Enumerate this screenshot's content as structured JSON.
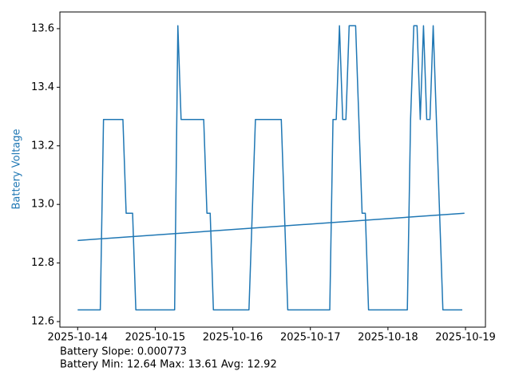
{
  "chart_data": {
    "type": "line",
    "ylabel": "Battery Voltage",
    "ylabel_color": "#1f77b4",
    "annotations": [
      "Battery Slope: 0.000773",
      "Battery Min: 12.64 Max: 13.61 Avg: 12.92"
    ],
    "xlim": [
      "2025-10-13T18:30",
      "2025-10-19T06:10"
    ],
    "xticks": [
      "2025-10-14",
      "2025-10-15",
      "2025-10-16",
      "2025-10-17",
      "2025-10-18",
      "2025-10-19"
    ],
    "ylim": [
      12.581,
      13.657
    ],
    "yticks": [
      12.6,
      12.8,
      {
        "value": 13,
        "label": "13.0"
      },
      13.2,
      13.4,
      13.6
    ],
    "series": [
      {
        "color": "#1f77b4",
        "x": [
          "2025-10-14T00:00",
          "2025-10-14T07:00",
          "2025-10-14T08:00",
          "2025-10-14T14:00",
          "2025-10-14T15:00",
          "2025-10-14T17:00",
          "2025-10-14T18:00",
          "2025-10-15T06:00",
          "2025-10-15T07:00",
          "2025-10-15T08:00",
          "2025-10-15T15:00",
          "2025-10-15T16:00",
          "2025-10-15T17:00",
          "2025-10-15T18:00",
          "2025-10-16T05:00",
          "2025-10-16T07:00",
          "2025-10-16T15:00",
          "2025-10-16T17:00",
          "2025-10-17T06:00",
          "2025-10-17T07:00",
          "2025-10-17T08:00",
          "2025-10-17T09:00",
          "2025-10-17T10:00",
          "2025-10-17T11:00",
          "2025-10-17T12:00",
          "2025-10-17T14:00",
          "2025-10-17T16:00",
          "2025-10-17T17:00",
          "2025-10-17T18:00",
          "2025-10-18T06:00",
          "2025-10-18T07:00",
          "2025-10-18T08:00",
          "2025-10-18T09:00",
          "2025-10-18T10:00",
          "2025-10-18T11:00",
          "2025-10-18T12:00",
          "2025-10-18T13:00",
          "2025-10-18T14:00",
          "2025-10-18T17:00",
          "2025-10-18T23:00"
        ],
        "values": [
          12.64,
          12.64,
          13.29,
          13.29,
          12.97,
          12.97,
          12.64,
          12.64,
          13.61,
          13.29,
          13.29,
          12.97,
          12.97,
          12.64,
          12.64,
          13.29,
          13.29,
          12.64,
          12.64,
          13.29,
          13.29,
          13.61,
          13.29,
          13.29,
          13.61,
          13.61,
          12.97,
          12.97,
          12.64,
          12.64,
          13.29,
          13.61,
          13.61,
          13.29,
          13.61,
          13.29,
          13.29,
          13.61,
          12.64,
          12.64
        ]
      },
      {
        "color": "#1f77b4",
        "x": [
          "2025-10-14T00:00",
          "2025-10-18T23:40"
        ],
        "values": [
          12.877,
          12.97
        ]
      }
    ]
  }
}
